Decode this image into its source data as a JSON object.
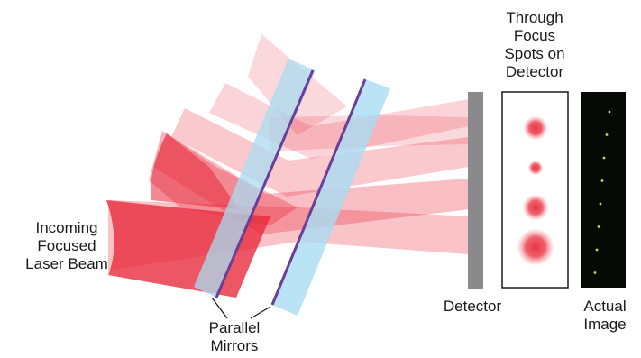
{
  "labels": {
    "incoming": [
      "Incoming",
      "Focused",
      "Laser Beam"
    ],
    "mirrors": [
      "Parallel",
      "Mirrors"
    ],
    "detector": "Detector",
    "through_focus": [
      "Through",
      "Focus",
      "Spots on",
      "Detector"
    ],
    "actual_image": [
      "Actual",
      "Image"
    ]
  },
  "colors": {
    "beam": "#e8283a",
    "mirror_glass": "#a9dcf2",
    "mirror_coating": "#6a3d96",
    "detector": "#8a8a8d",
    "image_bg": "#050a05",
    "image_spot": "#d8d24a"
  },
  "through_focus_spots": [
    {
      "relative_size": 0.65,
      "opacity": 0.95
    },
    {
      "relative_size": 0.4,
      "opacity": 0.95
    },
    {
      "relative_size": 0.7,
      "opacity": 0.95
    },
    {
      "relative_size": 1.0,
      "opacity": 0.95
    }
  ],
  "actual_image_spot_count": 8
}
